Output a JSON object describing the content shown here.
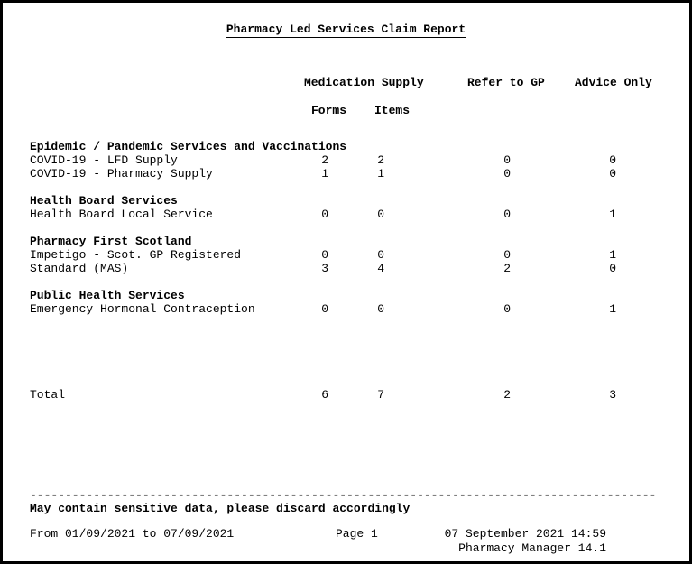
{
  "report": {
    "title": "Pharmacy Led Services Claim Report",
    "columns": {
      "medication_supply": "Medication Supply",
      "refer_to_gp": "Refer to GP",
      "advice_only": "Advice Only",
      "forms": "Forms",
      "items": "Items"
    },
    "sections": [
      {
        "name": "Epidemic / Pandemic Services and Vaccinations",
        "rows": [
          {
            "label": "COVID-19 - LFD Supply",
            "forms": "2",
            "items": "2",
            "refer": "0",
            "advice": "0"
          },
          {
            "label": "COVID-19 - Pharmacy Supply",
            "forms": "1",
            "items": "1",
            "refer": "0",
            "advice": "0"
          }
        ]
      },
      {
        "name": "Health Board Services",
        "rows": [
          {
            "label": "Health Board Local Service",
            "forms": "0",
            "items": "0",
            "refer": "0",
            "advice": "1"
          }
        ]
      },
      {
        "name": "Pharmacy First Scotland",
        "rows": [
          {
            "label": "Impetigo - Scot. GP Registered",
            "forms": "0",
            "items": "0",
            "refer": "0",
            "advice": "1"
          },
          {
            "label": "Standard (MAS)",
            "forms": "3",
            "items": "4",
            "refer": "2",
            "advice": "0"
          }
        ]
      },
      {
        "name": "Public Health Services",
        "rows": [
          {
            "label": "Emergency Hormonal Contraception",
            "forms": "0",
            "items": "0",
            "refer": "0",
            "advice": "1"
          }
        ]
      }
    ],
    "total": {
      "label": "Total",
      "forms": "6",
      "items": "7",
      "refer": "2",
      "advice": "3"
    },
    "footer": {
      "separator": "-----------------------------------------------------------------------------------------",
      "notice": "May contain sensitive data, please discard accordingly",
      "date_range": "From 01/09/2021 to 07/09/2021",
      "page": "Page 1",
      "datetime": "07 September 2021 14:59",
      "software": "Pharmacy Manager 14.1"
    }
  }
}
